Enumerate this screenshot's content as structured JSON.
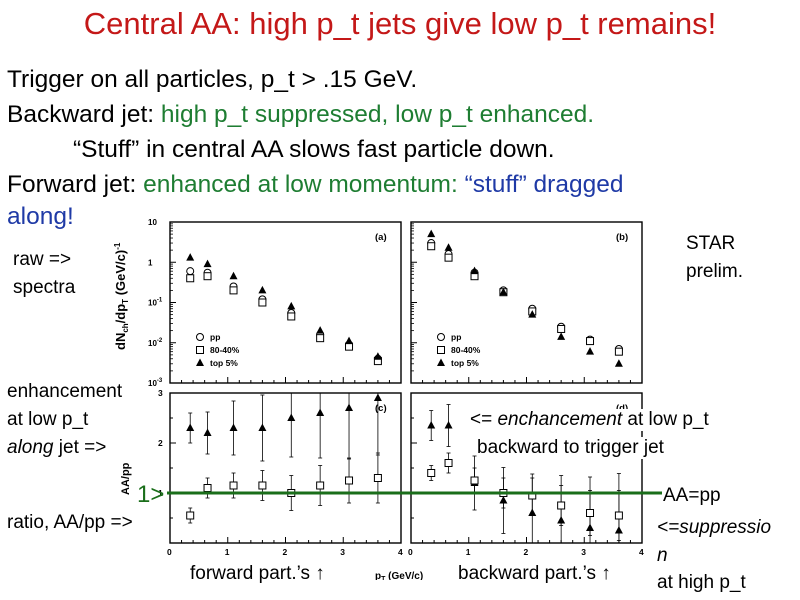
{
  "slide": {
    "title": "Central AA: high p_t jets give low p_t remains!",
    "line1": "Trigger on all particles, p_t > .15 GeV.",
    "line2_prefix": "Backward jet: ",
    "line2_colored": "high p_t suppressed, low p_t enhanced.",
    "line3": "“Stuff” in central AA slows fast particle down.",
    "line4_prefix": "Forward jet: ",
    "line4_green": "enhanced at low momentum: ",
    "line4_blue": "“stuff” dragged",
    "line5_blue": "along!",
    "raw_label_1": "raw =>",
    "raw_label_2": "spectra",
    "star_1": "STAR",
    "star_2": "prelim.",
    "enh_1": "enhancement",
    "enh_2": "at low p_t",
    "enh_3_italic": "along",
    "enh_3_rest": " jet =>",
    "right_enh_1_arrow": "<= ",
    "right_enh_1_italic": "enchancement",
    "right_enh_1_rest": " at low p_t",
    "right_enh_2": "backward to trigger jet",
    "one_marker": "1>",
    "aa_pp": "AA=pp",
    "ratio_label": "ratio, AA/pp =>",
    "suppress_1": "<=suppressio",
    "suppress_2": "n",
    "suppress_3": "at high p_t",
    "forward": "forward part.’s ↑",
    "backward": "backward part.’s ↑"
  },
  "colors": {
    "title": "#c41818",
    "green": "#1e7d32",
    "blue": "#1f3aa6",
    "ref_line": "#1a6e1a"
  },
  "chart_data": [
    {
      "panel": "(a)",
      "type": "scatter",
      "yscale": "log",
      "ylim": [
        0.001,
        10
      ],
      "ylabel": "dN_ch/dp_T (GeV/c)^-1",
      "yticks": [
        "10",
        "1",
        "10^-1",
        "10^-2",
        "10^-3"
      ],
      "legend": [
        "pp",
        "80-40%",
        "top 5%"
      ],
      "legend_loc": "bottom-left",
      "series": [
        {
          "name": "pp",
          "marker": "circle",
          "x": [
            0.35,
            0.65,
            1.1,
            1.6,
            2.1,
            2.6,
            3.1,
            3.6
          ],
          "y": [
            0.6,
            0.55,
            0.25,
            0.12,
            0.055,
            0.016,
            0.009,
            0.004
          ]
        },
        {
          "name": "80-40%",
          "marker": "square",
          "x": [
            0.35,
            0.65,
            1.1,
            1.6,
            2.1,
            2.6,
            3.1,
            3.6
          ],
          "y": [
            0.4,
            0.45,
            0.2,
            0.1,
            0.045,
            0.013,
            0.008,
            0.0035
          ]
        },
        {
          "name": "top 5%",
          "marker": "triangle",
          "x": [
            0.35,
            0.65,
            1.1,
            1.6,
            2.1,
            2.6,
            3.1,
            3.6
          ],
          "y": [
            1.3,
            0.9,
            0.45,
            0.2,
            0.08,
            0.02,
            0.011,
            0.0045
          ]
        }
      ]
    },
    {
      "panel": "(b)",
      "type": "scatter",
      "yscale": "log",
      "ylim": [
        0.001,
        10
      ],
      "legend": [
        "pp",
        "80-40%",
        "top 5%"
      ],
      "legend_loc": "bottom-left",
      "series": [
        {
          "name": "pp",
          "marker": "circle",
          "x": [
            0.35,
            0.65,
            1.1,
            1.6,
            2.1,
            2.6,
            3.1,
            3.6
          ],
          "y": [
            3.0,
            1.6,
            0.55,
            0.2,
            0.07,
            0.025,
            0.012,
            0.007
          ]
        },
        {
          "name": "80-40%",
          "marker": "square",
          "x": [
            0.35,
            0.65,
            1.1,
            1.6,
            2.1,
            2.6,
            3.1,
            3.6
          ],
          "y": [
            2.5,
            1.3,
            0.45,
            0.18,
            0.06,
            0.022,
            0.011,
            0.006
          ]
        },
        {
          "name": "top 5%",
          "marker": "triangle",
          "x": [
            0.35,
            0.65,
            1.1,
            1.6,
            2.1,
            2.6,
            3.1,
            3.6
          ],
          "y": [
            5.0,
            2.3,
            0.6,
            0.18,
            0.05,
            0.014,
            0.006,
            0.003
          ]
        }
      ]
    },
    {
      "panel": "(c)",
      "type": "scatter",
      "ylim": [
        0,
        3
      ],
      "ylabel": "AA/pp",
      "yticks": [
        "3",
        "2",
        "1"
      ],
      "xticks": [
        "0",
        "1",
        "2",
        "3",
        "4"
      ],
      "series": [
        {
          "name": "top 5%",
          "marker": "triangle",
          "x": [
            0.35,
            0.65,
            1.1,
            1.6,
            2.1,
            2.6,
            3.1,
            3.6
          ],
          "y": [
            2.3,
            2.2,
            2.3,
            2.3,
            2.5,
            2.6,
            2.7,
            2.9
          ]
        },
        {
          "name": "80-40%",
          "marker": "square",
          "x": [
            0.35,
            0.65,
            1.1,
            1.6,
            2.1,
            2.6,
            3.1,
            3.6
          ],
          "y": [
            0.55,
            1.1,
            1.15,
            1.15,
            1.0,
            1.15,
            1.25,
            1.3
          ]
        }
      ]
    },
    {
      "panel": "(d)",
      "type": "scatter",
      "ylim": [
        0,
        3
      ],
      "xticks": [
        "0",
        "1",
        "2",
        "3",
        "4"
      ],
      "series": [
        {
          "name": "top 5%",
          "marker": "triangle",
          "x": [
            0.35,
            0.65,
            1.1,
            1.6,
            2.1,
            2.6,
            3.1,
            3.6
          ],
          "y": [
            2.35,
            2.35,
            1.2,
            0.85,
            0.6,
            0.45,
            0.3,
            0.25
          ]
        },
        {
          "name": "80-40%",
          "marker": "square",
          "x": [
            0.35,
            0.65,
            1.1,
            1.6,
            2.1,
            2.6,
            3.1,
            3.6
          ],
          "y": [
            1.4,
            1.6,
            1.25,
            1.0,
            0.95,
            0.75,
            0.6,
            0.55
          ]
        }
      ]
    }
  ],
  "axes": {
    "xlabel": "p_T (GeV/c)",
    "xlim": [
      0,
      4
    ]
  }
}
